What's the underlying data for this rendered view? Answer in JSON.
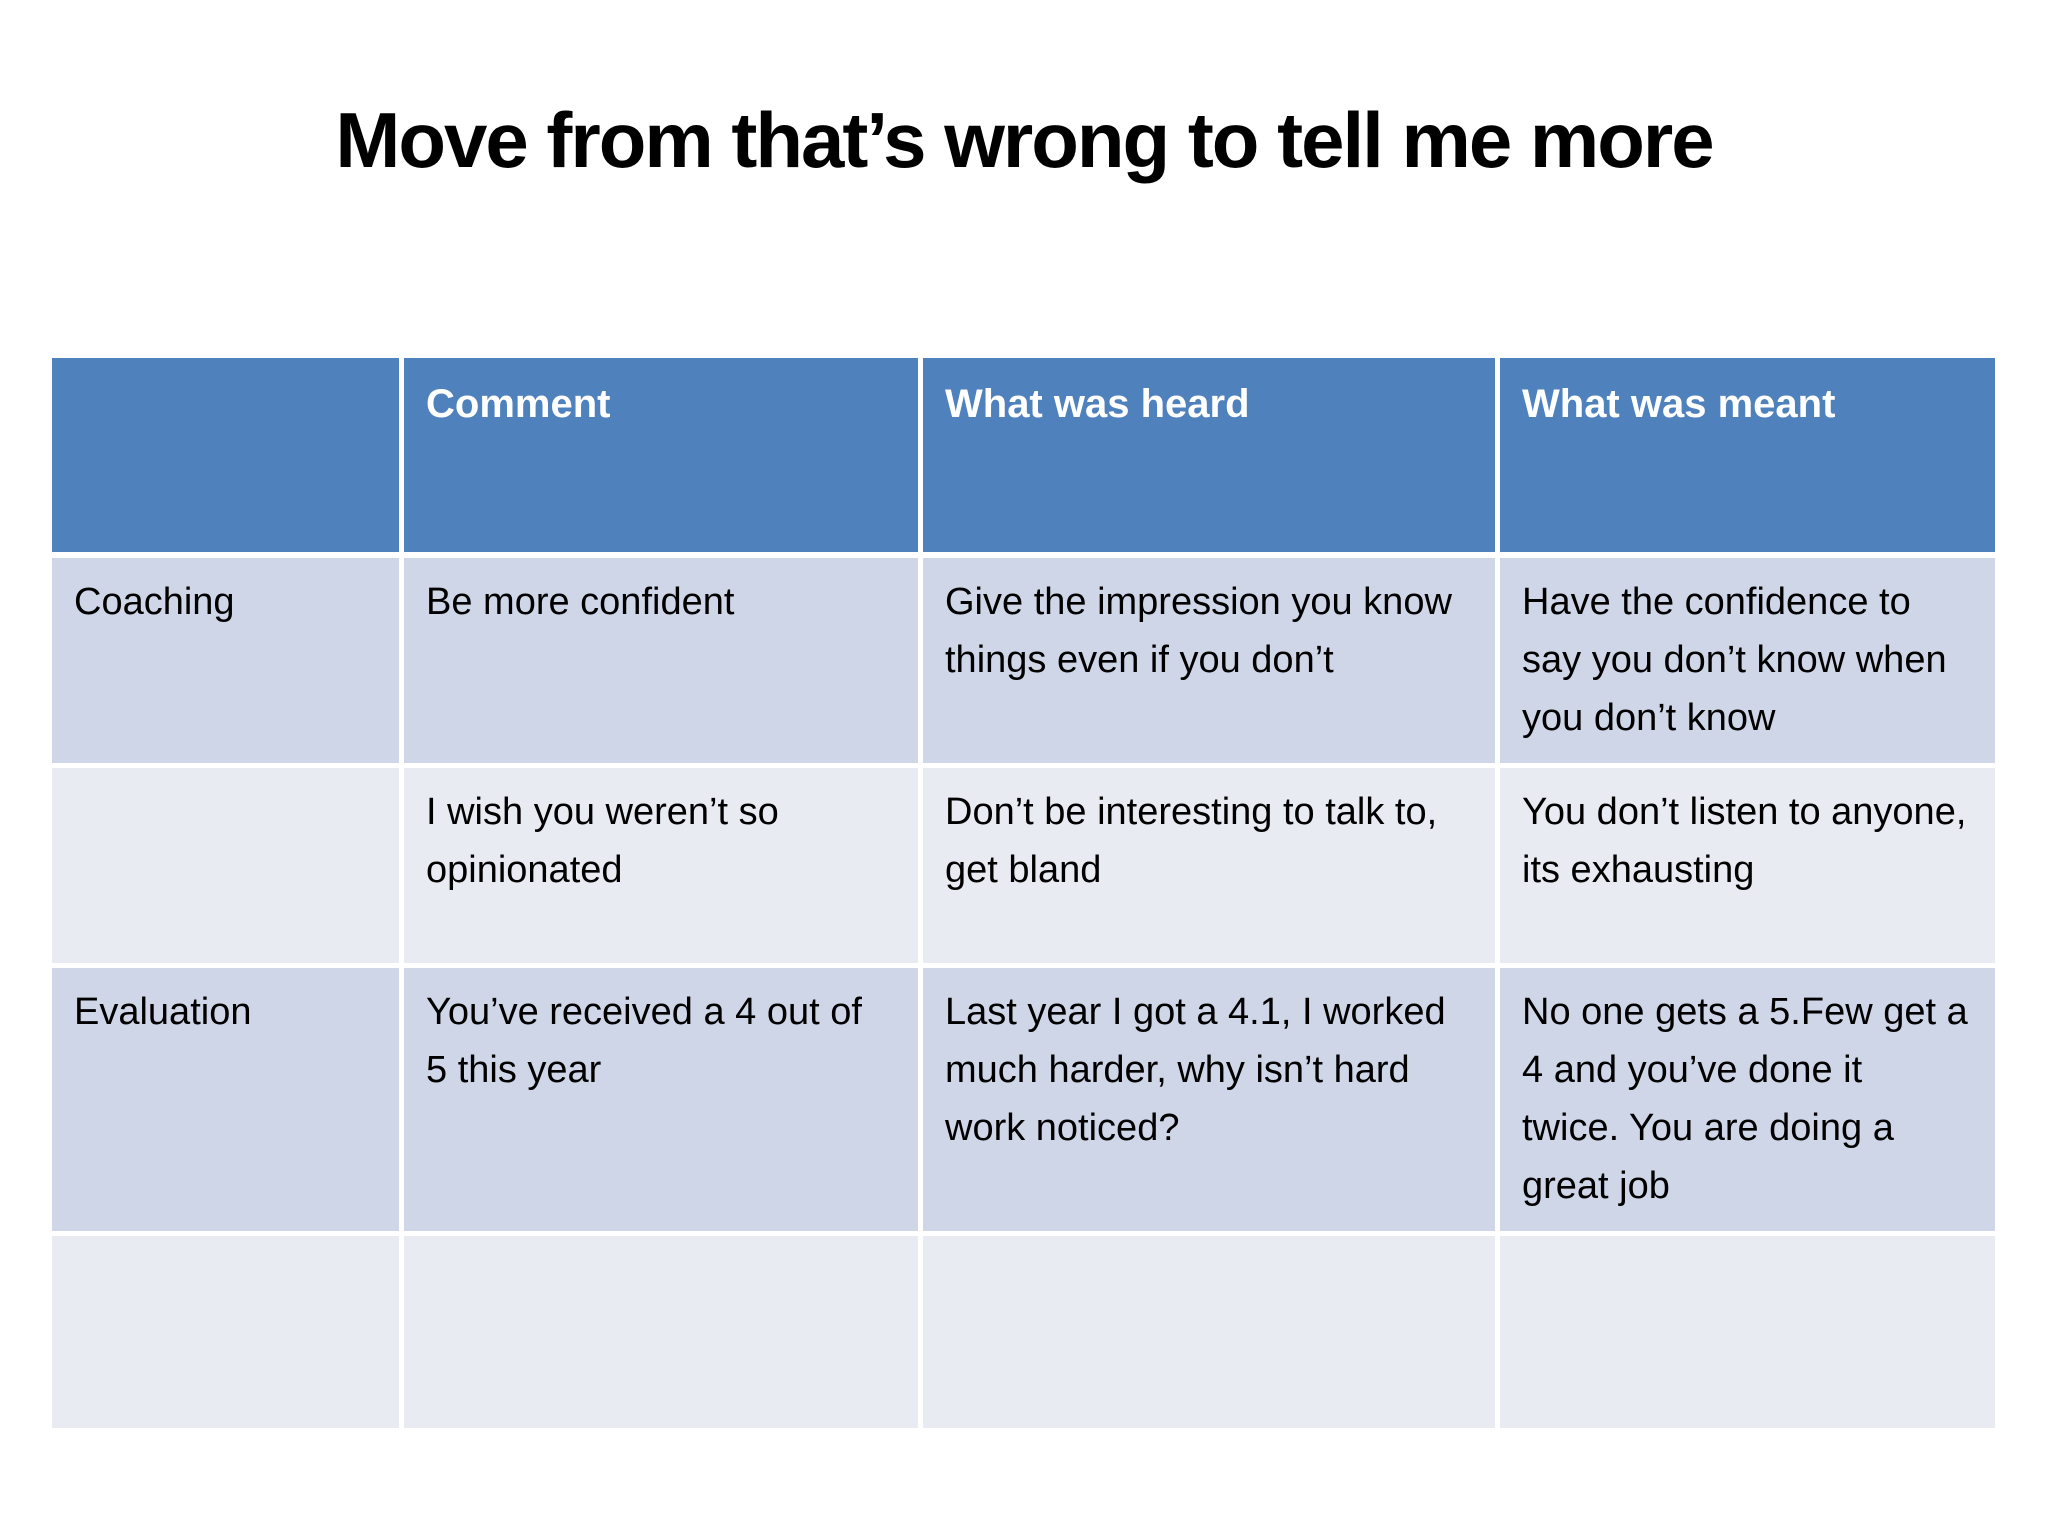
{
  "slide": {
    "title": "Move from that’s wrong to tell me more"
  },
  "colors": {
    "header_bg": "#4F81BD",
    "header_text": "#FFFFFF",
    "band_dark": "#CFD6E7",
    "band_light": "#E9EBF3",
    "grid_line": "#FFFFFF",
    "body_text": "#000000"
  },
  "table": {
    "columns": [
      "",
      "Comment",
      "What was heard",
      "What was meant"
    ],
    "rows": [
      {
        "label": "Coaching",
        "comment": "Be more confident",
        "heard": "Give the impression you know things even if you don’t",
        "meant": "Have the confidence to say you don’t know when you don’t know"
      },
      {
        "label": "",
        "comment": "I wish you weren’t so opinionated",
        "heard": "Don’t be interesting to talk to, get bland",
        "meant": "You don’t listen to anyone, its exhausting"
      },
      {
        "label": "Evaluation",
        "comment": "You’ve received a 4 out of 5 this year",
        "heard": "Last year I got a 4.1, I worked much harder, why isn’t hard work noticed?",
        "meant": "No one gets a 5.Few get a 4 and you’ve done it twice. You are doing a great job"
      },
      {
        "label": "",
        "comment": "",
        "heard": "",
        "meant": ""
      }
    ]
  }
}
